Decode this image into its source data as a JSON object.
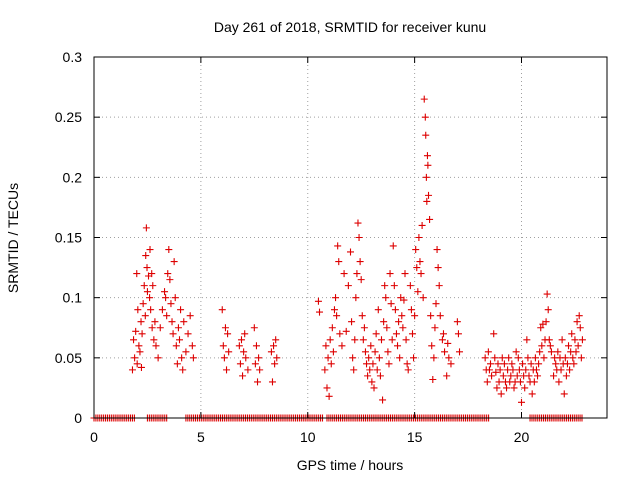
{
  "chart_data": {
    "type": "scatter",
    "title": "Day 261 of 2018, SRMTID for receiver kunu",
    "xlabel": "GPS time / hours",
    "ylabel": "SRMTID / TECUs",
    "xlim": [
      0,
      24
    ],
    "ylim": [
      0,
      0.3
    ],
    "xticks": [
      0,
      5,
      10,
      15,
      20
    ],
    "xtick_labels": [
      "0",
      "5",
      "10",
      "15",
      "20"
    ],
    "yticks": [
      0,
      0.05,
      0.1,
      0.15,
      0.2,
      0.25,
      0.3
    ],
    "ytick_labels": [
      "0",
      "0.05",
      "0.1",
      "0.15",
      "0.2",
      "0.25",
      "0.3"
    ],
    "grid": true,
    "legend": "none",
    "marker": "+",
    "color": "#dd0000",
    "series": [
      {
        "name": "SRMTID",
        "points": [
          [
            1.8,
            0.04
          ],
          [
            1.85,
            0.065
          ],
          [
            1.9,
            0.05
          ],
          [
            1.95,
            0.072
          ],
          [
            2.0,
            0.12
          ],
          [
            2.02,
            0.045
          ],
          [
            2.05,
            0.09
          ],
          [
            2.1,
            0.06
          ],
          [
            2.15,
            0.055
          ],
          [
            2.2,
            0.08
          ],
          [
            2.22,
            0.042
          ],
          [
            2.25,
            0.07
          ],
          [
            2.3,
            0.095
          ],
          [
            2.35,
            0.11
          ],
          [
            2.4,
            0.085
          ],
          [
            2.42,
            0.135
          ],
          [
            2.45,
            0.158
          ],
          [
            2.48,
            0.125
          ],
          [
            2.5,
            0.105
          ],
          [
            2.55,
            0.118
          ],
          [
            2.6,
            0.1
          ],
          [
            2.62,
            0.14
          ],
          [
            2.65,
            0.09
          ],
          [
            2.7,
            0.12
          ],
          [
            2.72,
            0.075
          ],
          [
            2.75,
            0.11
          ],
          [
            2.8,
            0.065
          ],
          [
            2.85,
            0.08
          ],
          [
            2.9,
            0.06
          ],
          [
            3.0,
            0.05
          ],
          [
            3.1,
            0.075
          ],
          [
            3.2,
            0.09
          ],
          [
            3.3,
            0.105
          ],
          [
            3.35,
            0.1
          ],
          [
            3.4,
            0.085
          ],
          [
            3.45,
            0.12
          ],
          [
            3.5,
            0.14
          ],
          [
            3.55,
            0.115
          ],
          [
            3.6,
            0.095
          ],
          [
            3.65,
            0.08
          ],
          [
            3.7,
            0.07
          ],
          [
            3.75,
            0.13
          ],
          [
            3.8,
            0.1
          ],
          [
            3.85,
            0.06
          ],
          [
            3.9,
            0.045
          ],
          [
            3.95,
            0.075
          ],
          [
            4.0,
            0.065
          ],
          [
            4.05,
            0.09
          ],
          [
            4.1,
            0.05
          ],
          [
            4.15,
            0.04
          ],
          [
            4.2,
            0.08
          ],
          [
            4.3,
            0.055
          ],
          [
            4.4,
            0.07
          ],
          [
            4.5,
            0.085
          ],
          [
            4.6,
            0.06
          ],
          [
            4.65,
            0.05
          ],
          [
            6.0,
            0.09
          ],
          [
            6.05,
            0.06
          ],
          [
            6.1,
            0.05
          ],
          [
            6.15,
            0.075
          ],
          [
            6.2,
            0.04
          ],
          [
            6.25,
            0.07
          ],
          [
            6.3,
            0.055
          ],
          [
            6.8,
            0.06
          ],
          [
            6.85,
            0.045
          ],
          [
            6.9,
            0.065
          ],
          [
            6.95,
            0.035
          ],
          [
            7.0,
            0.055
          ],
          [
            7.05,
            0.07
          ],
          [
            7.1,
            0.05
          ],
          [
            7.2,
            0.04
          ],
          [
            7.5,
            0.075
          ],
          [
            7.55,
            0.045
          ],
          [
            7.6,
            0.06
          ],
          [
            7.65,
            0.03
          ],
          [
            7.7,
            0.05
          ],
          [
            7.75,
            0.04
          ],
          [
            8.3,
            0.055
          ],
          [
            8.35,
            0.03
          ],
          [
            8.4,
            0.06
          ],
          [
            8.45,
            0.045
          ],
          [
            8.5,
            0.065
          ],
          [
            8.55,
            0.05
          ],
          [
            10.5,
            0.097
          ],
          [
            10.55,
            0.088
          ],
          [
            10.8,
            0.04
          ],
          [
            10.85,
            0.06
          ],
          [
            10.9,
            0.025
          ],
          [
            10.95,
            0.05
          ],
          [
            11.0,
            0.018
          ],
          [
            11.05,
            0.065
          ],
          [
            11.1,
            0.045
          ],
          [
            11.15,
            0.075
          ],
          [
            11.2,
            0.055
          ],
          [
            11.25,
            0.09
          ],
          [
            11.3,
            0.1
          ],
          [
            11.35,
            0.085
          ],
          [
            11.4,
            0.143
          ],
          [
            11.45,
            0.13
          ],
          [
            11.5,
            0.07
          ],
          [
            11.6,
            0.06
          ],
          [
            11.7,
            0.12
          ],
          [
            11.8,
            0.072
          ],
          [
            11.9,
            0.11
          ],
          [
            12.0,
            0.138
          ],
          [
            12.05,
            0.08
          ],
          [
            12.1,
            0.05
          ],
          [
            12.15,
            0.04
          ],
          [
            12.2,
            0.065
          ],
          [
            12.25,
            0.1
          ],
          [
            12.3,
            0.12
          ],
          [
            12.35,
            0.162
          ],
          [
            12.4,
            0.15
          ],
          [
            12.45,
            0.13
          ],
          [
            12.5,
            0.115
          ],
          [
            12.55,
            0.085
          ],
          [
            12.6,
            0.065
          ],
          [
            12.65,
            0.075
          ],
          [
            12.7,
            0.055
          ],
          [
            12.75,
            0.045
          ],
          [
            12.8,
            0.035
          ],
          [
            12.85,
            0.05
          ],
          [
            12.9,
            0.04
          ],
          [
            12.95,
            0.06
          ],
          [
            13.0,
            0.03
          ],
          [
            13.05,
            0.045
          ],
          [
            13.1,
            0.025
          ],
          [
            13.15,
            0.055
          ],
          [
            13.2,
            0.07
          ],
          [
            13.25,
            0.04
          ],
          [
            13.3,
            0.09
          ],
          [
            13.35,
            0.05
          ],
          [
            13.4,
            0.035
          ],
          [
            13.45,
            0.065
          ],
          [
            13.5,
            0.015
          ],
          [
            13.55,
            0.08
          ],
          [
            13.6,
            0.11
          ],
          [
            13.65,
            0.1
          ],
          [
            13.7,
            0.075
          ],
          [
            13.75,
            0.055
          ],
          [
            13.8,
            0.045
          ],
          [
            13.85,
            0.12
          ],
          [
            13.9,
            0.095
          ],
          [
            13.95,
            0.065
          ],
          [
            14.0,
            0.143
          ],
          [
            14.05,
            0.11
          ],
          [
            14.1,
            0.09
          ],
          [
            14.15,
            0.07
          ],
          [
            14.2,
            0.06
          ],
          [
            14.25,
            0.08
          ],
          [
            14.3,
            0.05
          ],
          [
            14.35,
            0.1
          ],
          [
            14.4,
            0.085
          ],
          [
            14.45,
            0.075
          ],
          [
            14.5,
            0.098
          ],
          [
            14.55,
            0.12
          ],
          [
            14.6,
            0.065
          ],
          [
            14.65,
            0.045
          ],
          [
            14.7,
            0.04
          ],
          [
            14.8,
            0.11
          ],
          [
            14.85,
            0.09
          ],
          [
            14.9,
            0.07
          ],
          [
            14.95,
            0.05
          ],
          [
            15.0,
            0.085
          ],
          [
            15.05,
            0.14
          ],
          [
            15.1,
            0.125
          ],
          [
            15.15,
            0.105
          ],
          [
            15.2,
            0.15
          ],
          [
            15.25,
            0.13
          ],
          [
            15.3,
            0.12
          ],
          [
            15.35,
            0.16
          ],
          [
            15.4,
            0.1
          ],
          [
            15.45,
            0.265
          ],
          [
            15.5,
            0.25
          ],
          [
            15.52,
            0.235
          ],
          [
            15.55,
            0.2
          ],
          [
            15.57,
            0.18
          ],
          [
            15.6,
            0.218
          ],
          [
            15.62,
            0.21
          ],
          [
            15.65,
            0.185
          ],
          [
            15.7,
            0.165
          ],
          [
            15.75,
            0.085
          ],
          [
            15.8,
            0.06
          ],
          [
            15.85,
            0.032
          ],
          [
            15.9,
            0.05
          ],
          [
            15.95,
            0.075
          ],
          [
            16.0,
            0.095
          ],
          [
            16.05,
            0.14
          ],
          [
            16.1,
            0.125
          ],
          [
            16.15,
            0.11
          ],
          [
            16.2,
            0.085
          ],
          [
            16.3,
            0.065
          ],
          [
            16.35,
            0.07
          ],
          [
            16.4,
            0.055
          ],
          [
            16.5,
            0.035
          ],
          [
            16.55,
            0.062
          ],
          [
            16.6,
            0.05
          ],
          [
            16.7,
            0.045
          ],
          [
            17.0,
            0.08
          ],
          [
            17.05,
            0.07
          ],
          [
            17.1,
            0.055
          ],
          [
            18.3,
            0.05
          ],
          [
            18.35,
            0.04
          ],
          [
            18.4,
            0.03
          ],
          [
            18.45,
            0.055
          ],
          [
            18.5,
            0.04
          ],
          [
            18.55,
            0.045
          ],
          [
            18.6,
            0.035
          ],
          [
            18.7,
            0.07
          ],
          [
            18.75,
            0.05
          ],
          [
            18.8,
            0.038
          ],
          [
            18.85,
            0.025
          ],
          [
            18.9,
            0.045
          ],
          [
            18.95,
            0.03
          ],
          [
            19.0,
            0.04
          ],
          [
            19.05,
            0.02
          ],
          [
            19.1,
            0.05
          ],
          [
            19.15,
            0.035
          ],
          [
            19.2,
            0.045
          ],
          [
            19.25,
            0.03
          ],
          [
            19.3,
            0.025
          ],
          [
            19.35,
            0.04
          ],
          [
            19.4,
            0.05
          ],
          [
            19.45,
            0.03
          ],
          [
            19.5,
            0.035
          ],
          [
            19.55,
            0.045
          ],
          [
            19.6,
            0.04
          ],
          [
            19.65,
            0.025
          ],
          [
            19.7,
            0.03
          ],
          [
            19.75,
            0.055
          ],
          [
            19.8,
            0.035
          ],
          [
            19.85,
            0.05
          ],
          [
            19.9,
            0.04
          ],
          [
            19.95,
            0.03
          ],
          [
            20.0,
            0.013
          ],
          [
            20.05,
            0.045
          ],
          [
            20.1,
            0.035
          ],
          [
            20.15,
            0.025
          ],
          [
            20.2,
            0.04
          ],
          [
            20.25,
            0.065
          ],
          [
            20.3,
            0.05
          ],
          [
            20.35,
            0.035
          ],
          [
            20.4,
            0.03
          ],
          [
            20.45,
            0.045
          ],
          [
            20.5,
            0.02
          ],
          [
            20.55,
            0.04
          ],
          [
            20.6,
            0.03
          ],
          [
            20.65,
            0.05
          ],
          [
            20.7,
            0.04
          ],
          [
            20.75,
            0.035
          ],
          [
            20.8,
            0.045
          ],
          [
            20.85,
            0.055
          ],
          [
            20.9,
            0.075
          ],
          [
            20.95,
            0.06
          ],
          [
            21.0,
            0.078
          ],
          [
            21.05,
            0.05
          ],
          [
            21.1,
            0.065
          ],
          [
            21.15,
            0.08
          ],
          [
            21.2,
            0.103
          ],
          [
            21.25,
            0.09
          ],
          [
            21.3,
            0.065
          ],
          [
            21.35,
            0.06
          ],
          [
            21.4,
            0.055
          ],
          [
            21.5,
            0.035
          ],
          [
            21.55,
            0.05
          ],
          [
            21.6,
            0.045
          ],
          [
            21.65,
            0.04
          ],
          [
            21.7,
            0.055
          ],
          [
            21.75,
            0.03
          ],
          [
            21.8,
            0.05
          ],
          [
            21.85,
            0.04
          ],
          [
            21.9,
            0.065
          ],
          [
            21.95,
            0.045
          ],
          [
            22.0,
            0.02
          ],
          [
            22.05,
            0.05
          ],
          [
            22.1,
            0.035
          ],
          [
            22.15,
            0.045
          ],
          [
            22.2,
            0.06
          ],
          [
            22.25,
            0.04
          ],
          [
            22.3,
            0.055
          ],
          [
            22.35,
            0.07
          ],
          [
            22.4,
            0.05
          ],
          [
            22.45,
            0.045
          ],
          [
            22.5,
            0.065
          ],
          [
            22.55,
            0.055
          ],
          [
            22.6,
            0.08
          ],
          [
            22.65,
            0.06
          ],
          [
            22.7,
            0.085
          ],
          [
            22.75,
            0.075
          ],
          [
            22.8,
            0.05
          ],
          [
            22.85,
            0.065
          ]
        ],
        "zero_runs": [
          [
            0.0,
            1.9
          ],
          [
            2.5,
            3.4
          ],
          [
            4.3,
            10.7
          ],
          [
            10.9,
            18.5
          ],
          [
            20.4,
            22.9
          ]
        ]
      }
    ]
  }
}
